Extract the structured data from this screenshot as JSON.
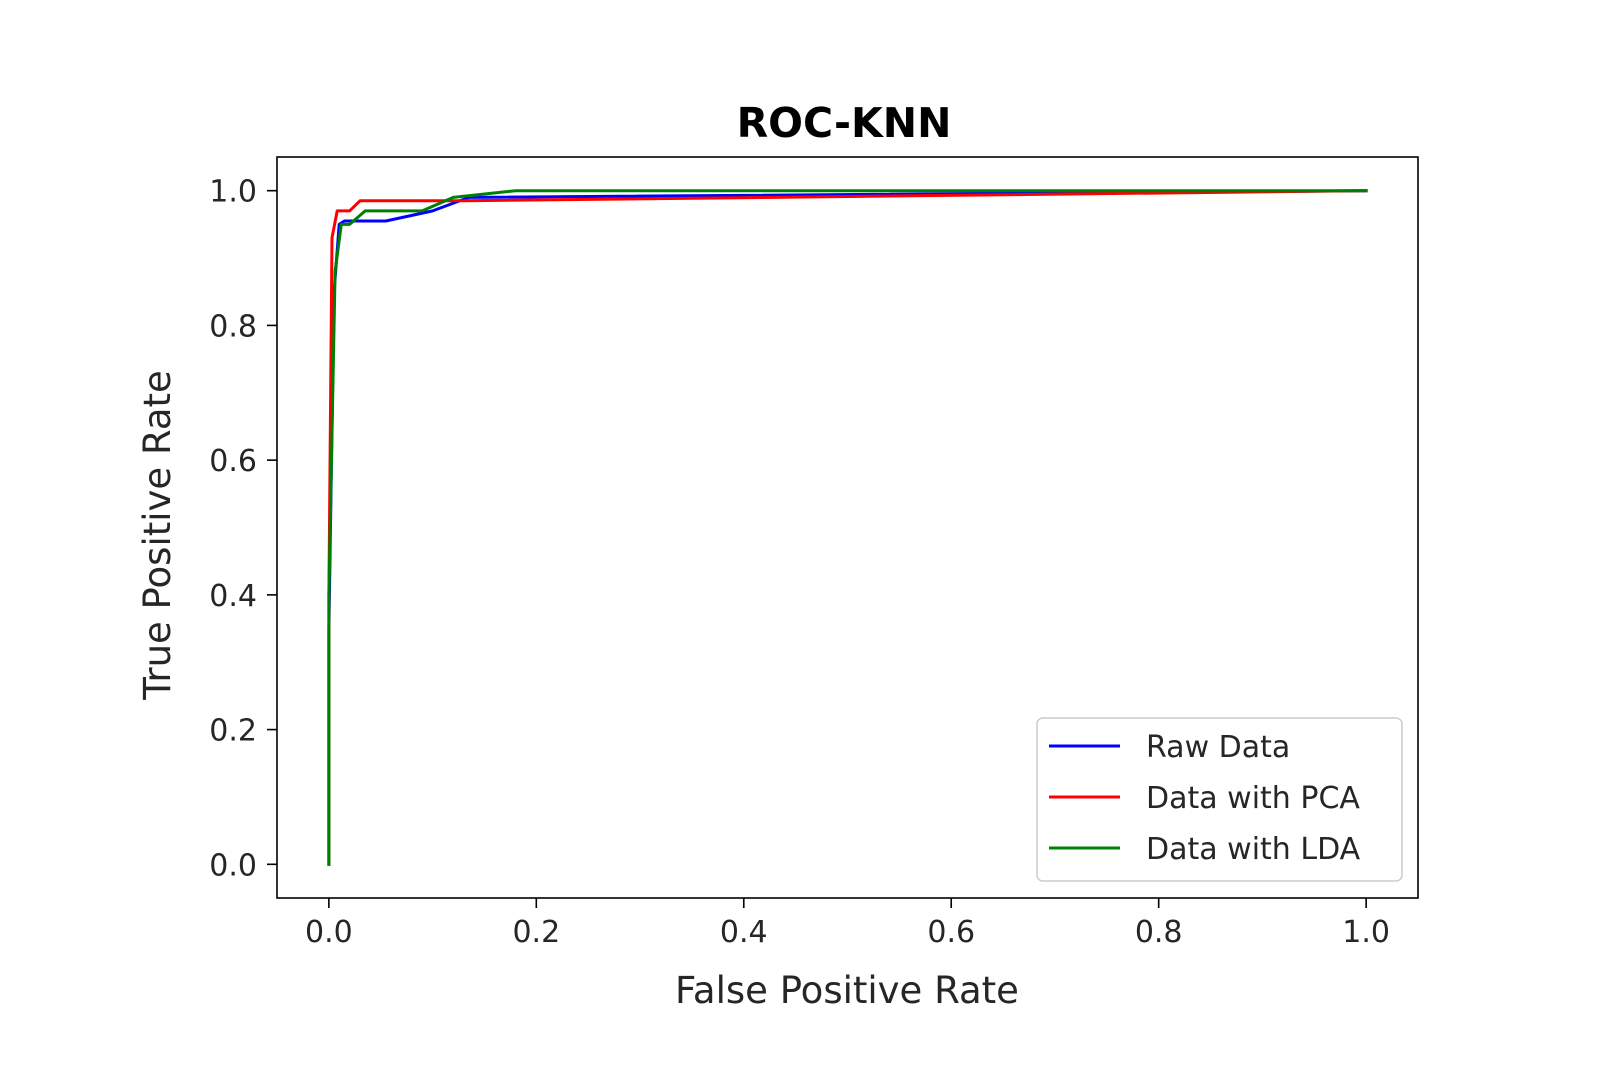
{
  "chart_data": {
    "type": "line",
    "title": "ROC-KNN",
    "xlabel": "False Positive Rate",
    "ylabel": "True Positive Rate",
    "xlim": [
      -0.05,
      1.05
    ],
    "ylim": [
      -0.05,
      1.05
    ],
    "xticks": [
      0.0,
      0.2,
      0.4,
      0.6,
      0.8,
      1.0
    ],
    "xtick_labels": [
      "0.0",
      "0.2",
      "0.4",
      "0.6",
      "0.8",
      "1.0"
    ],
    "yticks": [
      0.0,
      0.2,
      0.4,
      0.6,
      0.8,
      1.0
    ],
    "ytick_labels": [
      "0.0",
      "0.2",
      "0.4",
      "0.6",
      "0.8",
      "1.0"
    ],
    "grid": false,
    "legend_position": "lower-right",
    "series": [
      {
        "name": "Raw Data",
        "color": "#0000ff",
        "x": [
          0.0,
          0.0,
          0.005,
          0.01,
          0.015,
          0.055,
          0.1,
          0.135,
          1.0
        ],
        "y": [
          0.0,
          0.35,
          0.85,
          0.95,
          0.955,
          0.955,
          0.97,
          0.99,
          1.0
        ]
      },
      {
        "name": "Data with PCA",
        "color": "#ff0000",
        "x": [
          0.0,
          0.0,
          0.003,
          0.008,
          0.02,
          0.03,
          0.06,
          0.13,
          1.0
        ],
        "y": [
          0.0,
          0.4,
          0.93,
          0.97,
          0.97,
          0.985,
          0.985,
          0.985,
          1.0
        ]
      },
      {
        "name": "Data with LDA",
        "color": "#008000",
        "x": [
          0.0,
          0.0,
          0.006,
          0.012,
          0.02,
          0.035,
          0.09,
          0.12,
          0.18,
          1.0
        ],
        "y": [
          0.0,
          0.4,
          0.88,
          0.95,
          0.95,
          0.97,
          0.97,
          0.99,
          1.0,
          1.0
        ]
      }
    ]
  }
}
